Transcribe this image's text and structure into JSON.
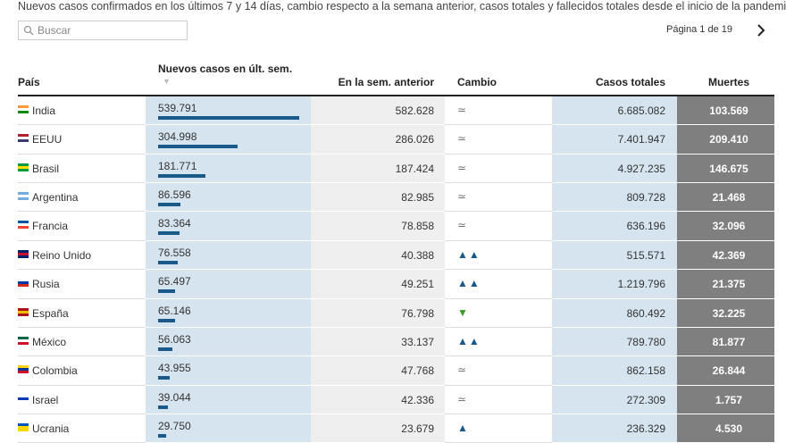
{
  "header": {
    "description": "Nuevos casos confirmados en los últimos 7 y 14 días, cambio respecto a la semana anterior, casos totales y fallecidos totales desde el inicio de la pandemia",
    "search_placeholder": "Buscar",
    "pagination": "Página 1 de 19"
  },
  "table": {
    "columns": [
      "País",
      "Nuevos casos en últ. sem.",
      "En la sem. anterior",
      "Cambio",
      "Casos totales",
      "Muertes"
    ],
    "rows": [
      {
        "country": "India",
        "new_cases": {
          "value": 539791,
          "label": "539.791"
        },
        "previous": "582.628",
        "change": "≃",
        "total": "6.685.082",
        "deaths": "103.569"
      },
      {
        "country": "EEUU",
        "new_cases": {
          "value": 304998,
          "label": "304.998"
        },
        "previous": "286.026",
        "change": "≃",
        "total": "7.401.947",
        "deaths": "209.410"
      },
      {
        "country": "Brasil",
        "new_cases": {
          "value": 181771,
          "label": "181.771"
        },
        "previous": "187.424",
        "change": "≃",
        "total": "4.927.235",
        "deaths": "146.675"
      },
      {
        "country": "Argentina",
        "new_cases": {
          "value": 86596,
          "label": "86.596"
        },
        "previous": "82.985",
        "change": "≃",
        "total": "809.728",
        "deaths": "21.468"
      },
      {
        "country": "Francia",
        "new_cases": {
          "value": 83364,
          "label": "83.364"
        },
        "previous": "78.858",
        "change": "≃",
        "total": "636.196",
        "deaths": "32.096"
      },
      {
        "country": "Reino Unido",
        "new_cases": {
          "value": 76558,
          "label": "76.558"
        },
        "previous": "40.388",
        "change": "▲▲",
        "total": "515.571",
        "deaths": "42.369"
      },
      {
        "country": "Rusia",
        "new_cases": {
          "value": 65497,
          "label": "65.497"
        },
        "previous": "49.251",
        "change": "▲▲",
        "total": "1.219.796",
        "deaths": "21.375"
      },
      {
        "country": "España",
        "new_cases": {
          "value": 65146,
          "label": "65.146"
        },
        "previous": "76.798",
        "change": "▼",
        "total": "860.492",
        "deaths": "32.225"
      },
      {
        "country": "México",
        "new_cases": {
          "value": 56063,
          "label": "56.063"
        },
        "previous": "33.137",
        "change": "▲▲",
        "total": "789.780",
        "deaths": "81.877"
      },
      {
        "country": "Colombia",
        "new_cases": {
          "value": 43955,
          "label": "43.955"
        },
        "previous": "47.768",
        "change": "≃",
        "total": "862.158",
        "deaths": "26.844"
      },
      {
        "country": "Israel",
        "new_cases": {
          "value": 39044,
          "label": "39.044"
        },
        "previous": "42.336",
        "change": "≃",
        "total": "272.309",
        "deaths": "1.757"
      },
      {
        "country": "Ucrania",
        "new_cases": {
          "value": 29750,
          "label": "29.750"
        },
        "previous": "23.679",
        "change": "▲",
        "total": "236.329",
        "deaths": "4.530"
      }
    ]
  }
}
